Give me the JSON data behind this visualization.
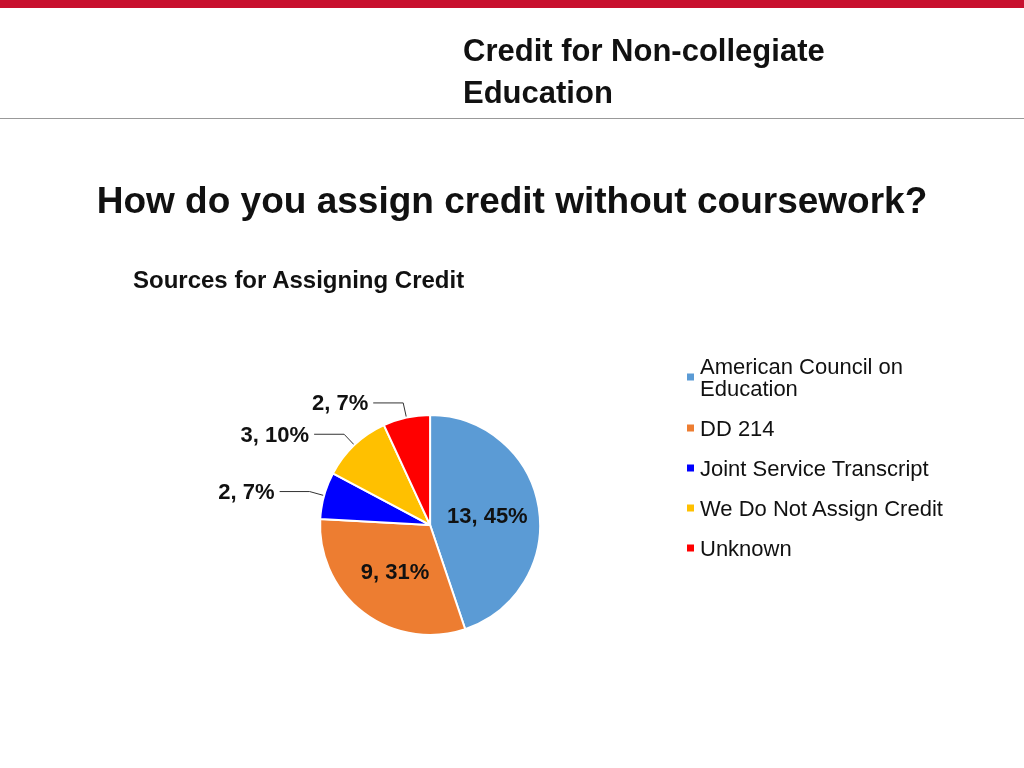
{
  "chart_data": {
    "type": "pie",
    "title": "How do you assign credit without coursework?",
    "subtitle": "Sources for Assigning Credit",
    "annotations": [
      "Credit for Non-collegiate Education"
    ],
    "categories": [
      "American Council on Education",
      "DD 214",
      "Joint Service Transcript",
      "We Do Not Assign Credit",
      "Unknown"
    ],
    "values": [
      13,
      9,
      2,
      3,
      2
    ],
    "colors": [
      "#5b9bd5",
      "#ed7d31",
      "#0000ff",
      "#ffc000",
      "#ff0000"
    ],
    "value_labels": [
      "13, 45%",
      "9, 31%",
      "2, 7%",
      "3, 10%",
      "2, 7%"
    ],
    "legend": "right"
  }
}
